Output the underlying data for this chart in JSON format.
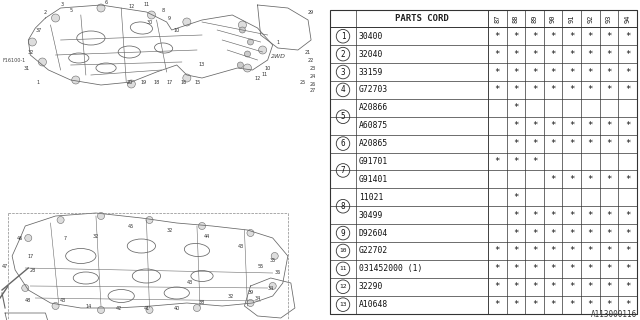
{
  "title": "A113000116",
  "bg_color": "#ffffff",
  "table_header": "PARTS CORD",
  "year_cols": [
    "87",
    "88",
    "89",
    "90",
    "91",
    "92",
    "93",
    "94"
  ],
  "rows": [
    {
      "num": "1",
      "part": "30400",
      "stars": [
        1,
        1,
        1,
        1,
        1,
        1,
        1,
        1
      ],
      "group_start": true,
      "group_end": true,
      "group_id": ""
    },
    {
      "num": "2",
      "part": "32040",
      "stars": [
        1,
        1,
        1,
        1,
        1,
        1,
        1,
        1
      ],
      "group_start": true,
      "group_end": true,
      "group_id": ""
    },
    {
      "num": "3",
      "part": "33159",
      "stars": [
        1,
        1,
        1,
        1,
        1,
        1,
        1,
        1
      ],
      "group_start": true,
      "group_end": true,
      "group_id": ""
    },
    {
      "num": "4",
      "part": "G72703",
      "stars": [
        1,
        1,
        1,
        1,
        1,
        1,
        1,
        1
      ],
      "group_start": true,
      "group_end": true,
      "group_id": ""
    },
    {
      "num": "5",
      "part": "A20866",
      "stars": [
        0,
        1,
        0,
        0,
        0,
        0,
        0,
        0
      ],
      "group_start": true,
      "group_end": false,
      "group_id": "5"
    },
    {
      "num": "5",
      "part": "A60875",
      "stars": [
        0,
        1,
        1,
        1,
        1,
        1,
        1,
        1
      ],
      "group_start": false,
      "group_end": true,
      "group_id": "5"
    },
    {
      "num": "6",
      "part": "A20865",
      "stars": [
        0,
        1,
        1,
        1,
        1,
        1,
        1,
        1
      ],
      "group_start": true,
      "group_end": true,
      "group_id": ""
    },
    {
      "num": "7",
      "part": "G91701",
      "stars": [
        1,
        1,
        1,
        0,
        0,
        0,
        0,
        0
      ],
      "group_start": true,
      "group_end": false,
      "group_id": "7"
    },
    {
      "num": "7",
      "part": "G91401",
      "stars": [
        0,
        0,
        0,
        1,
        1,
        1,
        1,
        1
      ],
      "group_start": false,
      "group_end": true,
      "group_id": "7"
    },
    {
      "num": "8",
      "part": "11021",
      "stars": [
        0,
        1,
        0,
        0,
        0,
        0,
        0,
        0
      ],
      "group_start": true,
      "group_end": false,
      "group_id": "8"
    },
    {
      "num": "8",
      "part": "30499",
      "stars": [
        0,
        1,
        1,
        1,
        1,
        1,
        1,
        1
      ],
      "group_start": false,
      "group_end": true,
      "group_id": "8"
    },
    {
      "num": "9",
      "part": "D92604",
      "stars": [
        0,
        1,
        1,
        1,
        1,
        1,
        1,
        1
      ],
      "group_start": true,
      "group_end": true,
      "group_id": ""
    },
    {
      "num": "10",
      "part": "G22702",
      "stars": [
        1,
        1,
        1,
        1,
        1,
        1,
        1,
        1
      ],
      "group_start": true,
      "group_end": true,
      "group_id": ""
    },
    {
      "num": "11",
      "part": "031452000 (1)",
      "stars": [
        1,
        1,
        1,
        1,
        1,
        1,
        1,
        1
      ],
      "group_start": true,
      "group_end": true,
      "group_id": ""
    },
    {
      "num": "12",
      "part": "32290",
      "stars": [
        1,
        1,
        1,
        1,
        1,
        1,
        1,
        1
      ],
      "group_start": true,
      "group_end": true,
      "group_id": ""
    },
    {
      "num": "13",
      "part": "A10648",
      "stars": [
        1,
        1,
        1,
        1,
        1,
        1,
        1,
        1
      ],
      "group_start": true,
      "group_end": true,
      "group_id": ""
    }
  ]
}
